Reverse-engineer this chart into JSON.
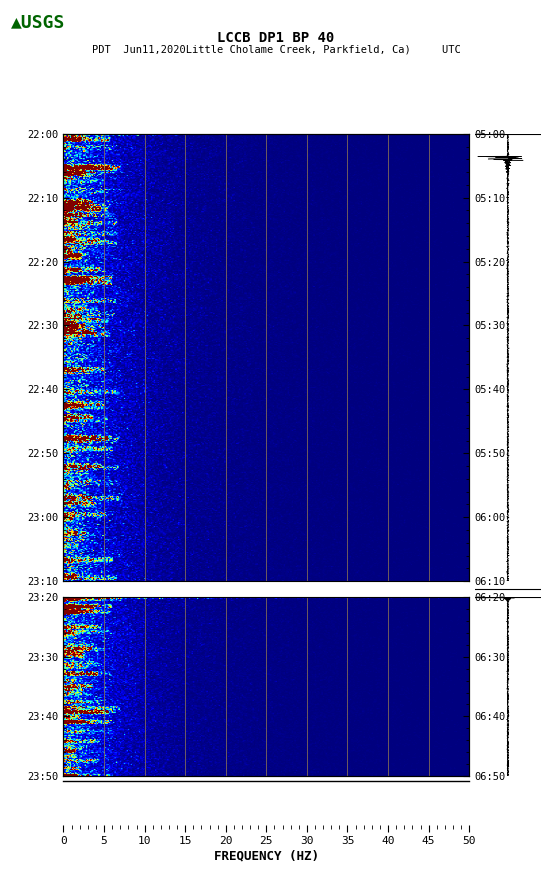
{
  "title_line1": "LCCB DP1 BP 40",
  "title_line2": "PDT  Jun11,2020Little Cholame Creek, Parkfield, Ca)     UTC",
  "xlabel": "FREQUENCY (HZ)",
  "freq_min": 0,
  "freq_max": 50,
  "freq_ticks": [
    0,
    5,
    10,
    15,
    20,
    25,
    30,
    35,
    40,
    45,
    50
  ],
  "freq_gridlines": [
    5,
    10,
    15,
    20,
    25,
    30,
    35,
    40,
    45
  ],
  "left_labels_p1": [
    "22:00",
    "22:10",
    "22:20",
    "22:30",
    "22:40",
    "22:50",
    "23:00",
    "23:10"
  ],
  "right_labels_p1": [
    "05:00",
    "05:10",
    "05:20",
    "05:30",
    "05:40",
    "05:50",
    "06:00",
    "06:10"
  ],
  "left_labels_p2": [
    "23:20",
    "23:30",
    "23:40",
    "23:50"
  ],
  "right_labels_p2": [
    "06:20",
    "06:30",
    "06:40",
    "06:50"
  ],
  "background_color": "#ffffff",
  "spectrogram_bg": "#000080",
  "gap_color": "#ffffff",
  "seismogram_color": "#000000",
  "colormap": "jet",
  "usgs_logo_color": "#006400",
  "grid_color": "#8B7355",
  "fig_width": 5.52,
  "fig_height": 8.92,
  "n_time1": 480,
  "n_time2": 240,
  "n_freq": 300
}
